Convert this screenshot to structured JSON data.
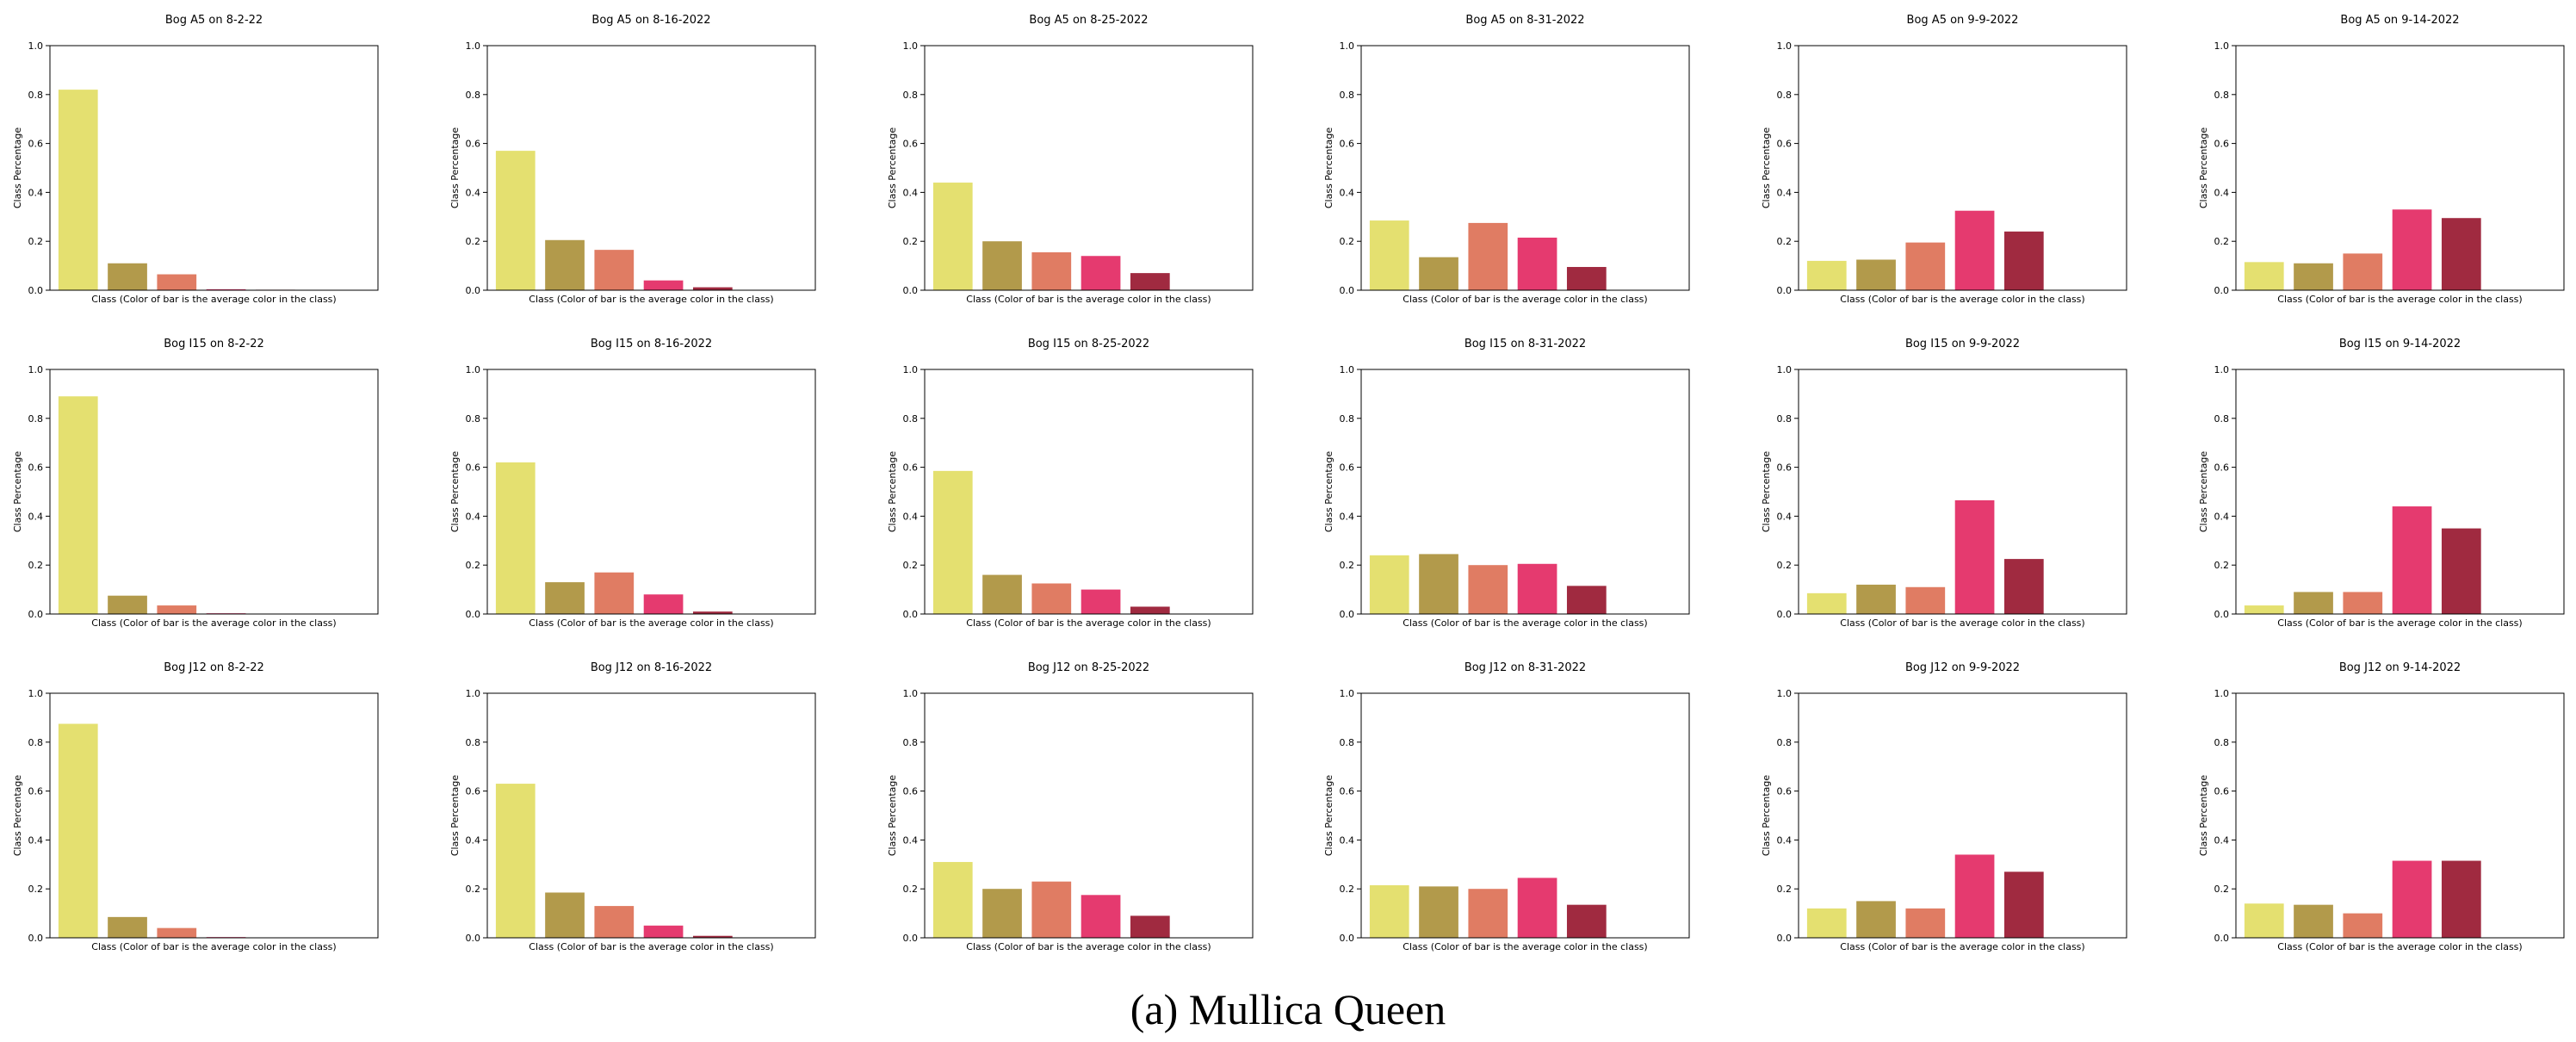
{
  "figure_caption": "(a) Mullica Queen",
  "colors": [
    "#e4e070",
    "#b29a4b",
    "#e07c63",
    "#e53a6f",
    "#a02a40"
  ],
  "chart_data": [
    {
      "type": "bar",
      "title": "Bog A5 on 8-2-22",
      "xlabel": "Class (Color of bar is the average color in the class)",
      "ylabel": "Class Percentage",
      "ylim": [
        0,
        1
      ],
      "yticks": [
        "0.0",
        "0.2",
        "0.4",
        "0.6",
        "0.8",
        "1.0"
      ],
      "values": [
        0.82,
        0.11,
        0.065,
        0.004,
        0.002
      ]
    },
    {
      "type": "bar",
      "title": "Bog A5 on 8-16-2022",
      "xlabel": "Class (Color of bar is the average color in the class)",
      "ylabel": "Class Percentage",
      "ylim": [
        0,
        1
      ],
      "yticks": [
        "0.0",
        "0.2",
        "0.4",
        "0.6",
        "0.8",
        "1.0"
      ],
      "values": [
        0.57,
        0.205,
        0.165,
        0.04,
        0.012
      ]
    },
    {
      "type": "bar",
      "title": "Bog A5 on 8-25-2022",
      "xlabel": "Class (Color of bar is the average color in the class)",
      "ylabel": "Class Percentage",
      "ylim": [
        0,
        1
      ],
      "yticks": [
        "0.0",
        "0.2",
        "0.4",
        "0.6",
        "0.8",
        "1.0"
      ],
      "values": [
        0.44,
        0.2,
        0.155,
        0.14,
        0.07
      ]
    },
    {
      "type": "bar",
      "title": "Bog A5 on 8-31-2022",
      "xlabel": "Class (Color of bar is the average color in the class)",
      "ylabel": "Class Percentage",
      "ylim": [
        0,
        1
      ],
      "yticks": [
        "0.0",
        "0.2",
        "0.4",
        "0.6",
        "0.8",
        "1.0"
      ],
      "values": [
        0.285,
        0.135,
        0.275,
        0.215,
        0.095
      ]
    },
    {
      "type": "bar",
      "title": "Bog A5 on 9-9-2022",
      "xlabel": "Class (Color of bar is the average color in the class)",
      "ylabel": "Class Percentage",
      "ylim": [
        0,
        1
      ],
      "yticks": [
        "0.0",
        "0.2",
        "0.4",
        "0.6",
        "0.8",
        "1.0"
      ],
      "values": [
        0.12,
        0.125,
        0.195,
        0.325,
        0.24
      ]
    },
    {
      "type": "bar",
      "title": "Bog A5 on 9-14-2022",
      "xlabel": "Class (Color of bar is the average color in the class)",
      "ylabel": "Class Percentage",
      "ylim": [
        0,
        1
      ],
      "yticks": [
        "0.0",
        "0.2",
        "0.4",
        "0.6",
        "0.8",
        "1.0"
      ],
      "values": [
        0.115,
        0.11,
        0.15,
        0.33,
        0.295
      ]
    },
    {
      "type": "bar",
      "title": "Bog I15 on 8-2-22",
      "xlabel": "Class (Color of bar is the average color in the class)",
      "ylabel": "Class Percentage",
      "ylim": [
        0,
        1
      ],
      "yticks": [
        "0.0",
        "0.2",
        "0.4",
        "0.6",
        "0.8",
        "1.0"
      ],
      "values": [
        0.89,
        0.075,
        0.035,
        0.003,
        0.001
      ]
    },
    {
      "type": "bar",
      "title": "Bog I15 on 8-16-2022",
      "xlabel": "Class (Color of bar is the average color in the class)",
      "ylabel": "Class Percentage",
      "ylim": [
        0,
        1
      ],
      "yticks": [
        "0.0",
        "0.2",
        "0.4",
        "0.6",
        "0.8",
        "1.0"
      ],
      "values": [
        0.62,
        0.13,
        0.17,
        0.08,
        0.01
      ]
    },
    {
      "type": "bar",
      "title": "Bog I15 on 8-25-2022",
      "xlabel": "Class (Color of bar is the average color in the class)",
      "ylabel": "Class Percentage",
      "ylim": [
        0,
        1
      ],
      "yticks": [
        "0.0",
        "0.2",
        "0.4",
        "0.6",
        "0.8",
        "1.0"
      ],
      "values": [
        0.585,
        0.16,
        0.125,
        0.1,
        0.03
      ]
    },
    {
      "type": "bar",
      "title": "Bog I15 on 8-31-2022",
      "xlabel": "Class (Color of bar is the average color in the class)",
      "ylabel": "Class Percentage",
      "ylim": [
        0,
        1
      ],
      "yticks": [
        "0.0",
        "0.2",
        "0.4",
        "0.6",
        "0.8",
        "1.0"
      ],
      "values": [
        0.24,
        0.245,
        0.2,
        0.205,
        0.115
      ]
    },
    {
      "type": "bar",
      "title": "Bog I15 on 9-9-2022",
      "xlabel": "Class (Color of bar is the average color in the class)",
      "ylabel": "Class Percentage",
      "ylim": [
        0,
        1
      ],
      "yticks": [
        "0.0",
        "0.2",
        "0.4",
        "0.6",
        "0.8",
        "1.0"
      ],
      "values": [
        0.085,
        0.12,
        0.11,
        0.465,
        0.225
      ]
    },
    {
      "type": "bar",
      "title": "Bog I15 on 9-14-2022",
      "xlabel": "Class (Color of bar is the average color in the class)",
      "ylabel": "Class Percentage",
      "ylim": [
        0,
        1
      ],
      "yticks": [
        "0.0",
        "0.2",
        "0.4",
        "0.6",
        "0.8",
        "1.0"
      ],
      "values": [
        0.035,
        0.09,
        0.09,
        0.44,
        0.35
      ]
    },
    {
      "type": "bar",
      "title": "Bog J12 on 8-2-22",
      "xlabel": "Class (Color of bar is the average color in the class)",
      "ylabel": "Class Percentage",
      "ylim": [
        0,
        1
      ],
      "yticks": [
        "0.0",
        "0.2",
        "0.4",
        "0.6",
        "0.8",
        "1.0"
      ],
      "values": [
        0.875,
        0.085,
        0.04,
        0.003,
        0.001
      ]
    },
    {
      "type": "bar",
      "title": "Bog J12 on 8-16-2022",
      "xlabel": "Class (Color of bar is the average color in the class)",
      "ylabel": "Class Percentage",
      "ylim": [
        0,
        1
      ],
      "yticks": [
        "0.0",
        "0.2",
        "0.4",
        "0.6",
        "0.8",
        "1.0"
      ],
      "values": [
        0.63,
        0.185,
        0.13,
        0.05,
        0.008
      ]
    },
    {
      "type": "bar",
      "title": "Bog J12 on 8-25-2022",
      "xlabel": "Class (Color of bar is the average color in the class)",
      "ylabel": "Class Percentage",
      "ylim": [
        0,
        1
      ],
      "yticks": [
        "0.0",
        "0.2",
        "0.4",
        "0.6",
        "0.8",
        "1.0"
      ],
      "values": [
        0.31,
        0.2,
        0.23,
        0.175,
        0.09
      ]
    },
    {
      "type": "bar",
      "title": "Bog J12 on 8-31-2022",
      "xlabel": "Class (Color of bar is the average color in the class)",
      "ylabel": "Class Percentage",
      "ylim": [
        0,
        1
      ],
      "yticks": [
        "0.0",
        "0.2",
        "0.4",
        "0.6",
        "0.8",
        "1.0"
      ],
      "values": [
        0.215,
        0.21,
        0.2,
        0.245,
        0.135
      ]
    },
    {
      "type": "bar",
      "title": "Bog J12 on 9-9-2022",
      "xlabel": "Class (Color of bar is the average color in the class)",
      "ylabel": "Class Percentage",
      "ylim": [
        0,
        1
      ],
      "yticks": [
        "0.0",
        "0.2",
        "0.4",
        "0.6",
        "0.8",
        "1.0"
      ],
      "values": [
        0.12,
        0.15,
        0.12,
        0.34,
        0.27
      ]
    },
    {
      "type": "bar",
      "title": "Bog J12 on 9-14-2022",
      "xlabel": "Class (Color of bar is the average color in the class)",
      "ylabel": "Class Percentage",
      "ylim": [
        0,
        1
      ],
      "yticks": [
        "0.0",
        "0.2",
        "0.4",
        "0.6",
        "0.8",
        "1.0"
      ],
      "values": [
        0.14,
        0.135,
        0.1,
        0.315,
        0.315
      ]
    }
  ]
}
